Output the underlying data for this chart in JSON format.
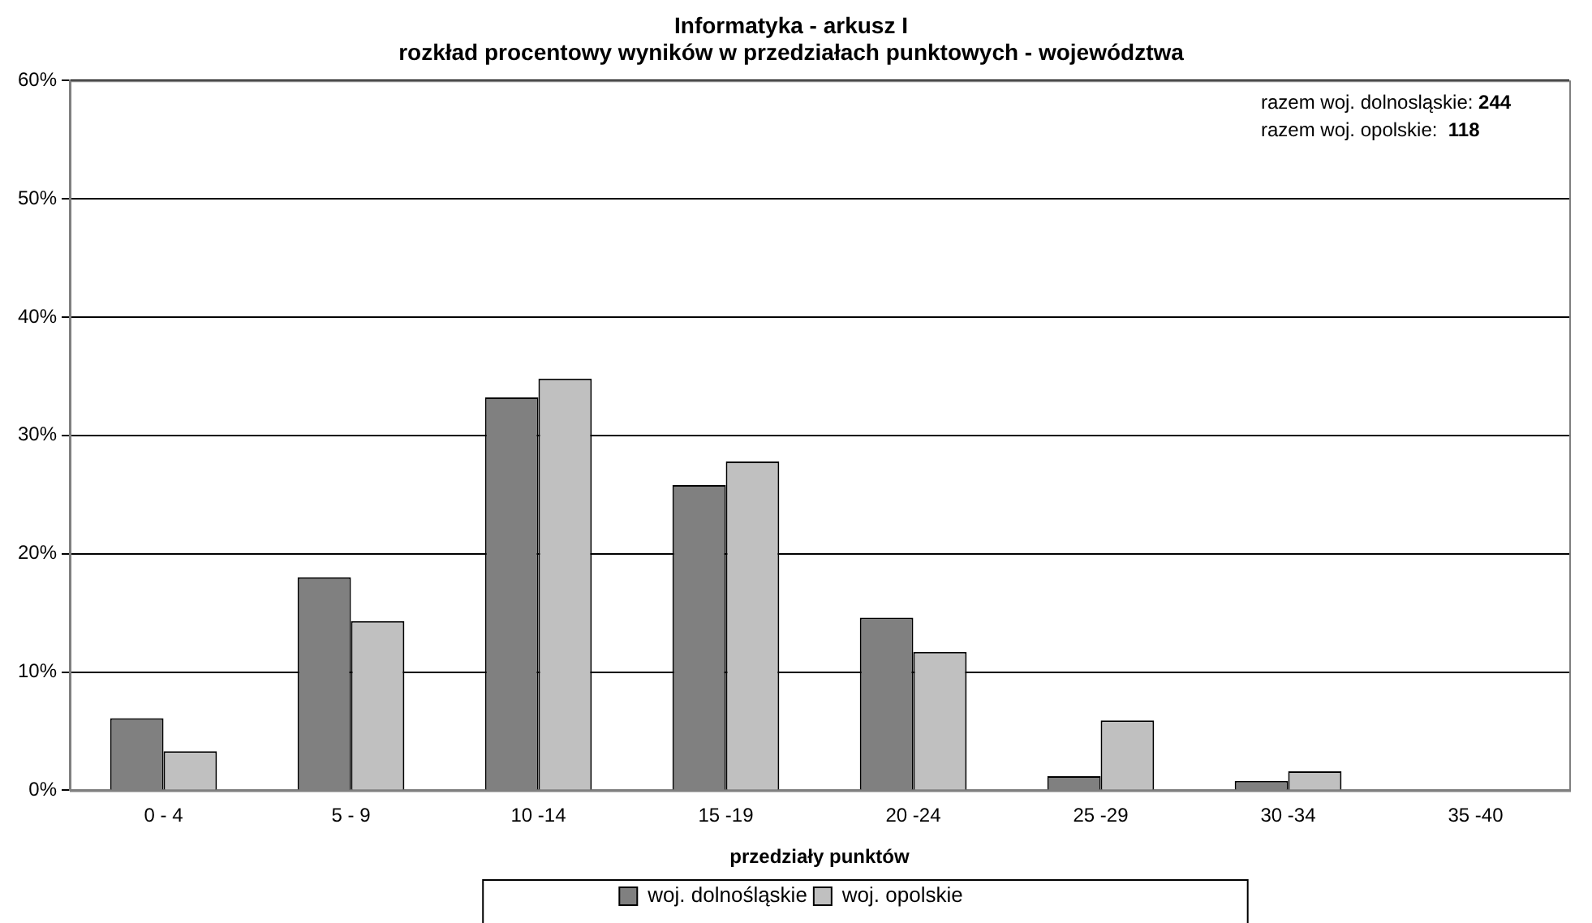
{
  "chart_data": {
    "type": "bar",
    "title": "Informatyka - arkusz I\nrozkład procentowy wyników w przedziałach punktowych - województwa",
    "xlabel": "przedziały punktów",
    "categories": [
      "0 - 4",
      "5 - 9",
      "10 -14",
      "15 -19",
      "20 -24",
      "25 -29",
      "30 -34",
      "35 -40"
    ],
    "series": [
      {
        "name": "woj. dolnośląskie",
        "color": "#808080",
        "values": [
          6.1,
          18.0,
          33.2,
          25.8,
          14.6,
          1.2,
          0.8,
          0
        ]
      },
      {
        "name": "woj. opolskie",
        "color": "#c0c0c0",
        "values": [
          3.3,
          14.3,
          34.8,
          27.8,
          11.7,
          5.9,
          1.6,
          0
        ]
      }
    ],
    "ylim": [
      0,
      60
    ],
    "yticks": [
      {
        "value": 0,
        "label": "0%"
      },
      {
        "value": 10,
        "label": "10%"
      },
      {
        "value": 20,
        "label": "20%"
      },
      {
        "value": 30,
        "label": "30%"
      },
      {
        "value": 40,
        "label": "40%"
      },
      {
        "value": 50,
        "label": "50%"
      },
      {
        "value": 60,
        "label": "60%"
      }
    ],
    "grid": "y",
    "legend": "bottom",
    "annotations": [
      "razem woj. dolnosląskie: 244",
      "razem woj. opolskie:  118"
    ]
  }
}
